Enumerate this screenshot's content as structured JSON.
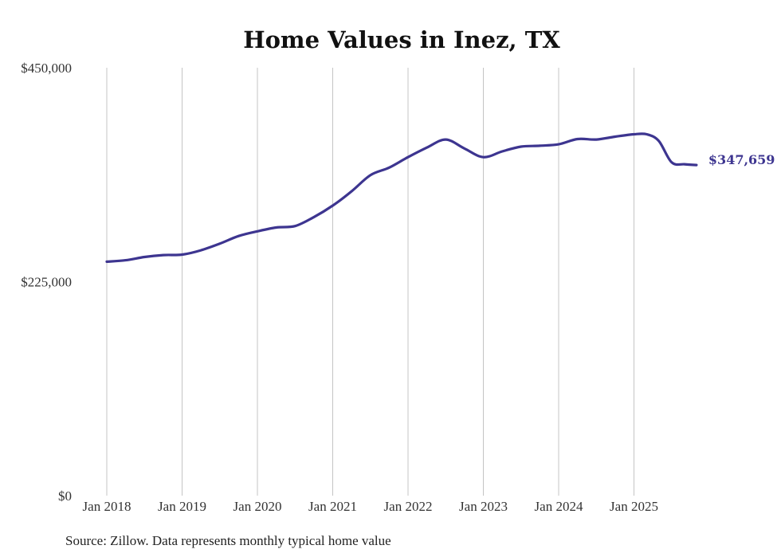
{
  "chart_data": {
    "type": "line",
    "title": "Home Values in Inez, TX",
    "xlabel": "",
    "ylabel": "",
    "ylim": [
      0,
      450000
    ],
    "y_ticks": [
      {
        "value": 0,
        "label": "$0"
      },
      {
        "value": 225000,
        "label": "$225,000"
      },
      {
        "value": 450000,
        "label": "$450,000"
      }
    ],
    "x_range": [
      2018.0,
      2026.0
    ],
    "x_ticks": [
      {
        "value": 2018,
        "label": "Jan 2018"
      },
      {
        "value": 2019,
        "label": "Jan 2019"
      },
      {
        "value": 2020,
        "label": "Jan 2020"
      },
      {
        "value": 2021,
        "label": "Jan 2021"
      },
      {
        "value": 2022,
        "label": "Jan 2022"
      },
      {
        "value": 2023,
        "label": "Jan 2023"
      },
      {
        "value": 2024,
        "label": "Jan 2024"
      },
      {
        "value": 2025,
        "label": "Jan 2025"
      }
    ],
    "grid": "vertical",
    "series": [
      {
        "name": "Typical home value",
        "color": "#3d3590",
        "end_label": "$347,659",
        "x": [
          2018.0,
          2018.25,
          2018.5,
          2018.75,
          2019.0,
          2019.25,
          2019.5,
          2019.75,
          2020.0,
          2020.25,
          2020.5,
          2020.75,
          2021.0,
          2021.25,
          2021.5,
          2021.75,
          2022.0,
          2022.25,
          2022.5,
          2022.75,
          2023.0,
          2023.25,
          2023.5,
          2023.75,
          2024.0,
          2024.25,
          2024.5,
          2024.75,
          2025.0,
          2025.17,
          2025.33,
          2025.5,
          2025.67,
          2025.83
        ],
        "values": [
          246000,
          247500,
          251000,
          253000,
          253500,
          258000,
          265000,
          273000,
          278000,
          282000,
          283500,
          293000,
          305000,
          320000,
          337000,
          345000,
          356000,
          366000,
          374500,
          365000,
          356000,
          362000,
          367000,
          368000,
          369500,
          375000,
          374500,
          377500,
          380000,
          380000,
          373000,
          350500,
          348500,
          347659
        ]
      }
    ]
  },
  "source": "Source: Zillow. Data represents monthly typical home value"
}
